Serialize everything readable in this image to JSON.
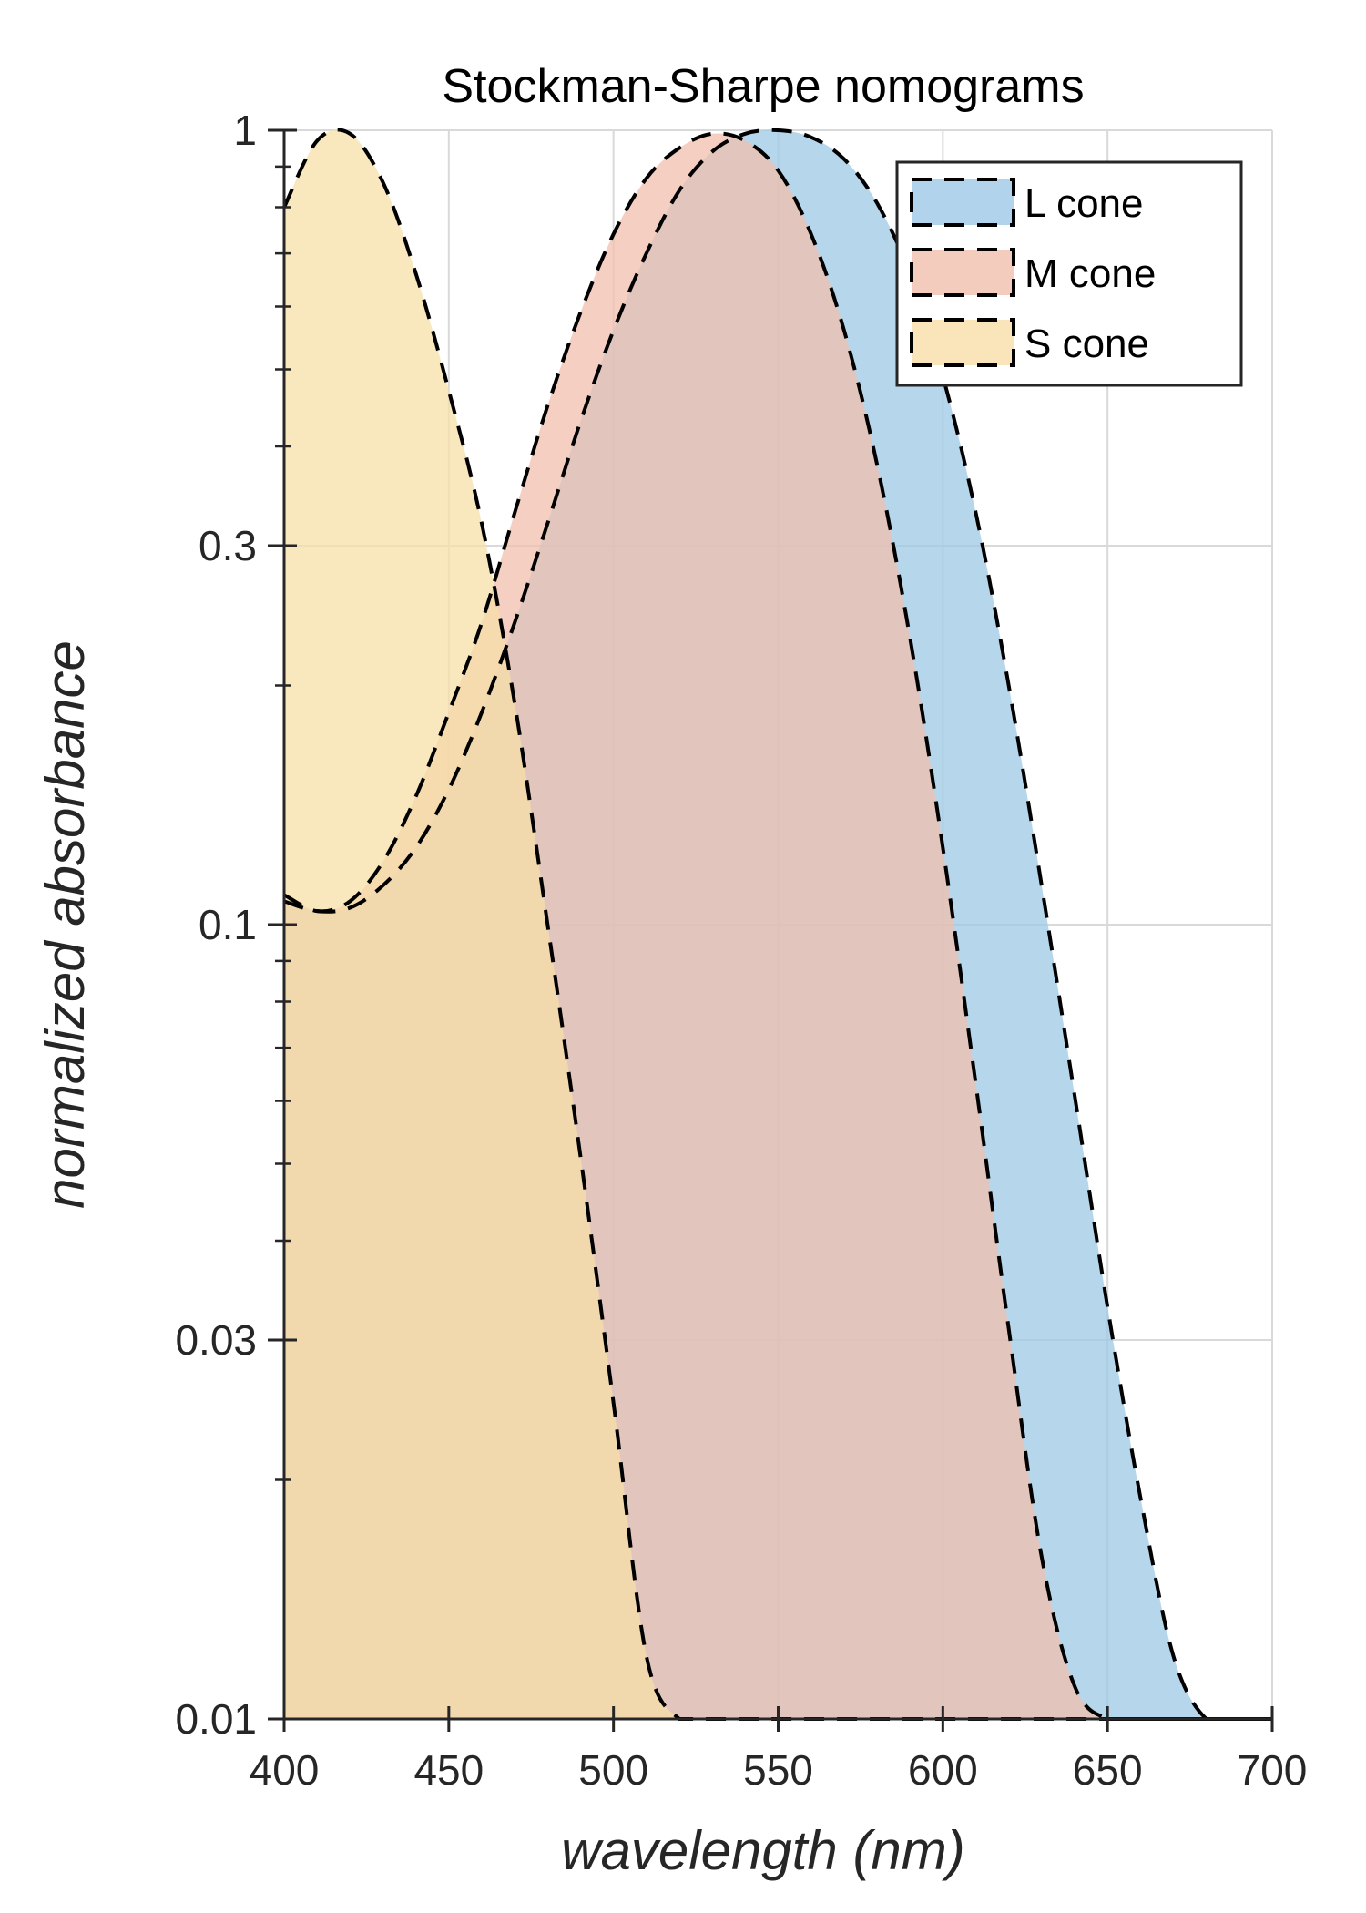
{
  "chart_data": {
    "type": "area",
    "title": "Stockman-Sharpe nomograms",
    "xlabel": "wavelength (nm)",
    "ylabel": "normalized absorbance",
    "xlim": [
      400,
      700
    ],
    "ylim": [
      0.01,
      1
    ],
    "yscale": "log",
    "grid": true,
    "legend_position": "top-right",
    "x_ticks": [
      400,
      450,
      500,
      550,
      600,
      650,
      700
    ],
    "x_tick_labels": [
      "400",
      "450",
      "500",
      "550",
      "600",
      "650",
      "700"
    ],
    "y_ticks": [
      0.01,
      0.03,
      0.1,
      0.3,
      1
    ],
    "y_tick_labels": [
      "0.01",
      "0.03",
      "0.1",
      "0.3",
      "1"
    ],
    "x": [
      400,
      410,
      420,
      430,
      440,
      450,
      460,
      470,
      480,
      490,
      500,
      510,
      520,
      530,
      540,
      550,
      560,
      570,
      580,
      590,
      600,
      610,
      620,
      630,
      640,
      650,
      660,
      670,
      680,
      690,
      700
    ],
    "series": [
      {
        "name": "L cone",
        "color": "#9ec8e6",
        "values": [
          0.107,
          0.104,
          0.105,
          0.112,
          0.125,
          0.148,
          0.185,
          0.24,
          0.32,
          0.43,
          0.56,
          0.7,
          0.84,
          0.94,
          0.99,
          1.0,
          0.98,
          0.92,
          0.81,
          0.66,
          0.49,
          0.33,
          0.2,
          0.112,
          0.061,
          0.033,
          0.019,
          0.012,
          0.01,
          0.01,
          0.01
        ]
      },
      {
        "name": "M cone",
        "color": "#f0bfad",
        "values": [
          0.109,
          0.104,
          0.107,
          0.12,
          0.145,
          0.185,
          0.24,
          0.33,
          0.45,
          0.59,
          0.74,
          0.87,
          0.95,
          0.99,
          0.97,
          0.89,
          0.74,
          0.56,
          0.38,
          0.23,
          0.125,
          0.063,
          0.031,
          0.016,
          0.011,
          0.01,
          0.01,
          0.01,
          0.01,
          0.01,
          0.01
        ]
      },
      {
        "name": "S cone",
        "color": "#f7dfa8",
        "values": [
          0.8,
          0.97,
          0.99,
          0.86,
          0.66,
          0.47,
          0.32,
          0.19,
          0.1,
          0.051,
          0.025,
          0.012,
          0.01,
          0.01,
          0.01,
          0.01,
          0.01,
          0.01,
          0.01,
          0.01,
          0.01,
          0.01,
          0.01,
          0.01,
          0.01,
          0.01,
          0.01,
          0.01,
          0.01,
          0.01,
          0.01
        ]
      }
    ]
  }
}
